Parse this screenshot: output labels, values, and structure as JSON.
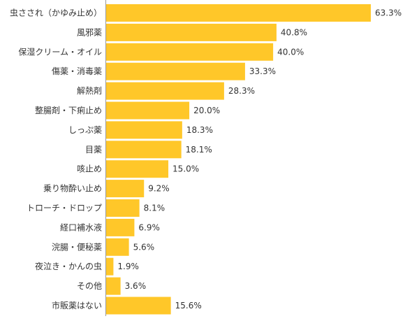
{
  "chart_data": {
    "type": "bar",
    "orientation": "horizontal",
    "categories": [
      "虫さされ（かゆみ止め）",
      "風邪薬",
      "保湿クリーム・オイル",
      "傷薬・消毒薬",
      "解熱剤",
      "整腸剤・下痢止め",
      "しっぷ薬",
      "目薬",
      "咳止め",
      "乗り物酔い止め",
      "トローチ・ドロップ",
      "経口補水液",
      "浣腸・便秘薬",
      "夜泣き・かんの虫",
      "その他",
      "市販薬はない"
    ],
    "values": [
      63.3,
      40.8,
      40.0,
      33.3,
      28.3,
      20.0,
      18.3,
      18.1,
      15.0,
      9.2,
      8.1,
      6.9,
      5.6,
      1.9,
      3.6,
      15.6
    ],
    "value_labels": [
      "63.3%",
      "40.8%",
      "40.0%",
      "33.3%",
      "28.3%",
      "20.0%",
      "18.3%",
      "18.1%",
      "15.0%",
      "9.2%",
      "8.1%",
      "6.9%",
      "5.6%",
      "1.9%",
      "3.6%",
      "15.6%"
    ],
    "unit": "%",
    "xlim": [
      0,
      63.3
    ],
    "bar_color": "#FFC729",
    "axis_color": "#999999",
    "text_color": "#333333",
    "grid": false,
    "legend": "none"
  }
}
